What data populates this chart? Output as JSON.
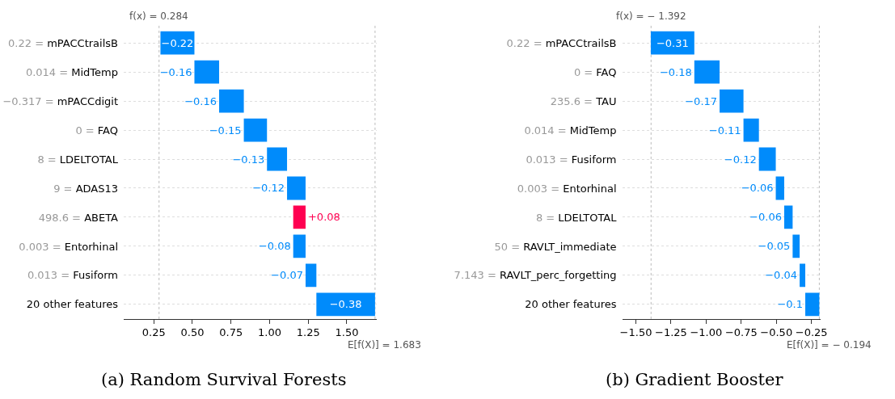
{
  "chart_data": [
    {
      "type": "bar",
      "orientation": "horizontal",
      "title": "(a) Random Survival Forests",
      "categories": [
        "0.22 = mPACCtrailsB",
        "0.014 = MidTemp",
        "−0.317 = mPACCdigit",
        "0 = FAQ",
        "8 = LDELTOTAL",
        "9 = ADAS13",
        "498.6 = ABETA",
        "0.003 = Entorhinal",
        "0.013 = Fusiform",
        "20 other features"
      ],
      "values": [
        -0.22,
        -0.16,
        -0.16,
        -0.15,
        -0.13,
        -0.12,
        0.08,
        -0.08,
        -0.07,
        -0.38
      ],
      "base": [
        0.513,
        0.673,
        0.833,
        0.983,
        1.113,
        1.233,
        1.153,
        1.233,
        1.303,
        1.683
      ],
      "colors": [
        "#008bfb",
        "#008bfb",
        "#008bfb",
        "#008bfb",
        "#008bfb",
        "#008bfb",
        "#ff0051",
        "#008bfb",
        "#008bfb",
        "#008bfb"
      ],
      "value_labels": [
        "−0.22",
        "−0.16",
        "−0.16",
        "−0.15",
        "−0.13",
        "−0.12",
        "+0.08",
        "−0.08",
        "−0.07",
        "−0.38"
      ],
      "xlim": [
        0.055,
        1.695
      ],
      "xticks": [
        0.25,
        {
          "value": 0.5,
          "label": "0.50"
        },
        0.75,
        {
          "value": 1.0,
          "label": "1.00"
        },
        1.25,
        {
          "value": 1.5,
          "label": "1.50"
        }
      ],
      "ref_lines": [
        {
          "axis": "x",
          "value": 0.284,
          "label": "f(x) = 0.284"
        },
        {
          "axis": "x",
          "value": 1.683,
          "label": "E[f(X)] = 1.683"
        }
      ],
      "grid": "y"
    },
    {
      "type": "bar",
      "orientation": "horizontal",
      "title": "(b) Gradient Booster",
      "categories": [
        "0.22 = mPACCtrailsB",
        "0 = FAQ",
        "235.6 = TAU",
        "0.014 = MidTemp",
        "0.013 = Fusiform",
        "0.003 = Entorhinal",
        "8 = LDELTOTAL",
        "50 = RAVLT_immediate",
        "7.143 = RAVLT_perc_forgetting",
        "20 other features"
      ],
      "values": [
        -0.31,
        -0.18,
        -0.17,
        -0.11,
        -0.12,
        -0.06,
        -0.06,
        -0.05,
        -0.04,
        -0.1
      ],
      "base": [
        -1.084,
        -0.904,
        -0.734,
        -0.624,
        -0.504,
        -0.444,
        -0.384,
        -0.334,
        -0.294,
        -0.194
      ],
      "colors": [
        "#008bfb",
        "#008bfb",
        "#008bfb",
        "#008bfb",
        "#008bfb",
        "#008bfb",
        "#008bfb",
        "#008bfb",
        "#008bfb",
        "#008bfb"
      ],
      "value_labels": [
        "−0.31",
        "−0.18",
        "−0.17",
        "−0.11",
        "−0.12",
        "−0.06",
        "−0.06",
        "−0.05",
        "−0.04",
        "−0.1"
      ],
      "xlim": [
        -1.598,
        -0.186
      ],
      "xticks": [
        {
          "value": -1.5,
          "label": "−1.50"
        },
        {
          "value": -1.25,
          "label": "−1.25"
        },
        {
          "value": -1.0,
          "label": "−1.00"
        },
        {
          "value": -0.75,
          "label": "−0.75"
        },
        {
          "value": -0.5,
          "label": "−0.50"
        },
        {
          "value": -0.25,
          "label": "−0.25"
        }
      ],
      "ref_lines": [
        {
          "axis": "x",
          "value": -1.392,
          "label": "f(x) = − 1.392"
        },
        {
          "axis": "x",
          "value": -0.194,
          "label": "E[f(X)] = − 0.194"
        }
      ],
      "grid": "y"
    }
  ]
}
